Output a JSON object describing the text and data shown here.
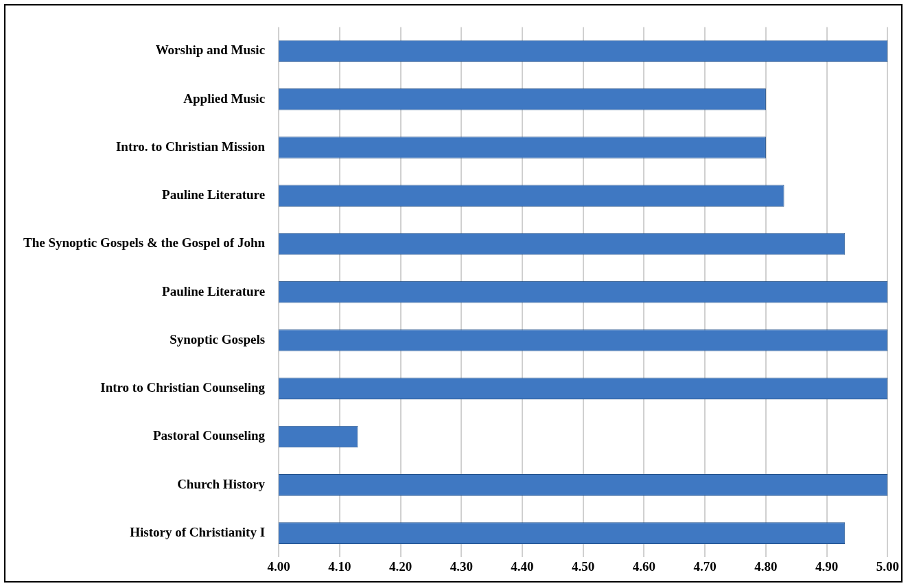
{
  "chart_data": {
    "type": "bar",
    "orientation": "horizontal",
    "categories": [
      "Worship and Music",
      "Applied Music",
      "Intro. to Christian Mission",
      "Pauline Literature",
      "The Synoptic Gospels & the Gospel of John",
      "Pauline Literature",
      "Synoptic Gospels",
      "Intro to Christian Counseling",
      "Pastoral Counseling",
      "Church History",
      "History of Christianity I"
    ],
    "values": [
      5.0,
      4.8,
      4.8,
      4.83,
      4.93,
      5.0,
      5.0,
      5.0,
      4.13,
      5.0,
      4.93
    ],
    "color": "#3f78c2",
    "xlim": [
      4.0,
      5.0
    ],
    "xticks": [
      {
        "value": 4.0,
        "label": "4.00"
      },
      {
        "value": 4.1,
        "label": "4.10"
      },
      {
        "value": 4.2,
        "label": "4.20"
      },
      {
        "value": 4.3,
        "label": "4.30"
      },
      {
        "value": 4.4,
        "label": "4.40"
      },
      {
        "value": 4.5,
        "label": "4.50"
      },
      {
        "value": 4.6,
        "label": "4.60"
      },
      {
        "value": 4.7,
        "label": "4.70"
      },
      {
        "value": 4.8,
        "label": "4.80"
      },
      {
        "value": 4.9,
        "label": "4.90"
      },
      {
        "value": 5.0,
        "label": "5.00"
      }
    ],
    "grid": "x",
    "legend": false
  }
}
